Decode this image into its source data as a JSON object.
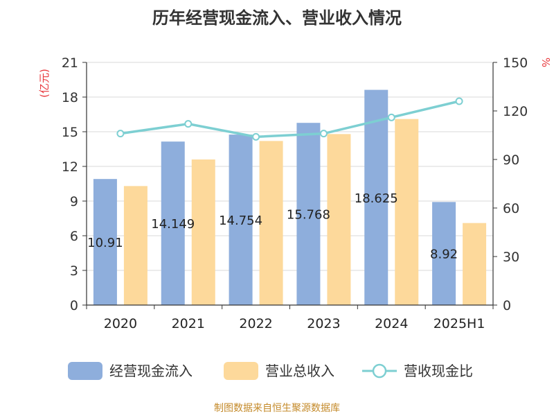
{
  "title": "历年经营现金流入、营业收入情况",
  "footer": "制图数据来自恒生聚源数据库",
  "chart_data": {
    "type": "bar",
    "title": "历年经营现金流入、营业收入情况",
    "categories": [
      "2020",
      "2021",
      "2022",
      "2023",
      "2024",
      "2025H1"
    ],
    "y_left": {
      "unit": "(亿元)",
      "ylim": [
        0,
        21
      ],
      "ticks": [
        "0",
        "3",
        "6",
        "9",
        "12",
        "15",
        "18",
        "21"
      ]
    },
    "y_right": {
      "unit": "%",
      "ylim": [
        0,
        150
      ],
      "ticks": [
        "0",
        "30",
        "60",
        "90",
        "120",
        "150"
      ]
    },
    "series": [
      {
        "name": "经营现金流入",
        "type": "bar",
        "axis": "left",
        "color": "#8eaedc",
        "values": [
          10.91,
          14.149,
          14.754,
          15.768,
          18.625,
          8.92
        ],
        "labels": [
          "10.91",
          "14.149",
          "14.754",
          "15.768",
          "18.625",
          "8.92"
        ]
      },
      {
        "name": "营业总收入",
        "type": "bar",
        "axis": "left",
        "color": "#fdd99b",
        "values": [
          10.3,
          12.6,
          14.2,
          14.8,
          16.1,
          7.1
        ]
      },
      {
        "name": "营收现金比",
        "type": "line",
        "axis": "right",
        "color": "#7dcfd2",
        "values": [
          106,
          112,
          104,
          106,
          116,
          126
        ]
      }
    ],
    "grid": true,
    "legend_position": "bottom"
  }
}
